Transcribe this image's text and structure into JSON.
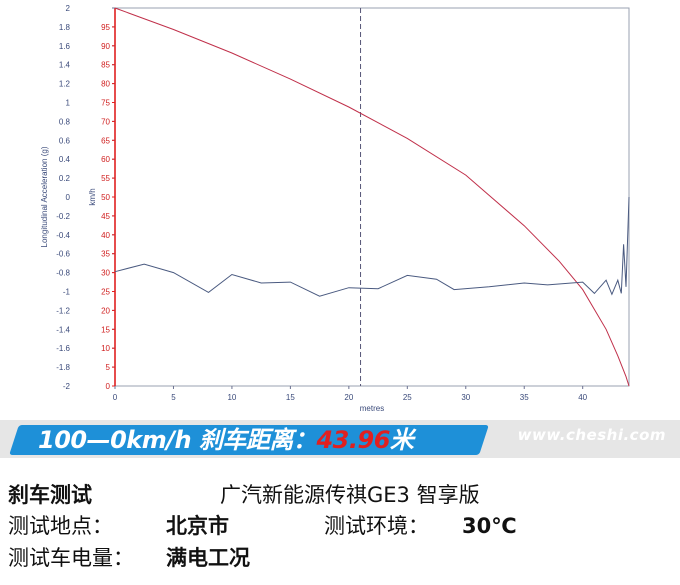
{
  "chart_data": {
    "type": "line",
    "xlabel": "metres",
    "left_axis_label": "Longitudinal Acceleration (g)",
    "right_axis_label": "km/h",
    "xlim": [
      0,
      43.96
    ],
    "x_ticks": [
      "0",
      "5",
      "10",
      "15",
      "20",
      "25",
      "30",
      "35",
      "40"
    ],
    "left_ticks": [
      "2",
      "1.8",
      "1.6",
      "1.4",
      "1.2",
      "1",
      "0.8",
      "0.6",
      "0.4",
      "0.2",
      "0",
      "-0.2",
      "-0.4",
      "-0.6",
      "-0.8",
      "-1",
      "-1.2",
      "-1.4",
      "-1.6",
      "-1.8",
      "-2"
    ],
    "right_ticks": [
      "95",
      "90",
      "85",
      "80",
      "75",
      "70",
      "65",
      "60",
      "55",
      "50",
      "45",
      "40",
      "35",
      "30",
      "25",
      "20",
      "15",
      "10",
      "5",
      "0"
    ],
    "left_ylim": [
      -2,
      2
    ],
    "right_ylim": [
      0,
      100
    ],
    "cursor_x": 21,
    "grid": false,
    "series": [
      {
        "axis": "right",
        "color": "#c0304a",
        "x": [
          0,
          5,
          10,
          15,
          20,
          25,
          30,
          35,
          38,
          40,
          42,
          43,
          43.7,
          43.96
        ],
        "y": [
          100,
          94.3,
          88.1,
          81.2,
          73.8,
          65.5,
          55.8,
          42.4,
          33,
          25.5,
          15,
          8,
          2.5,
          0
        ]
      },
      {
        "axis": "left",
        "color": "#4a5a80",
        "x": [
          0,
          2.5,
          5,
          8,
          10,
          12.5,
          15,
          17.5,
          20,
          22.5,
          25,
          27.5,
          29,
          32,
          35,
          37,
          40,
          41,
          42,
          42.5,
          43,
          43.3,
          43.5,
          43.7,
          43.96
        ],
        "y": [
          -0.79,
          -0.71,
          -0.8,
          -1.01,
          -0.82,
          -0.91,
          -0.9,
          -1.05,
          -0.96,
          -0.97,
          -0.83,
          -0.87,
          -0.98,
          -0.95,
          -0.91,
          -0.93,
          -0.9,
          -1.02,
          -0.88,
          -1.03,
          -0.88,
          -1.02,
          -0.5,
          -0.95,
          0.0
        ]
      }
    ]
  },
  "banner": {
    "prefix": "100—0km/h 刹车距离：",
    "value": "43.96",
    "suffix": "米",
    "watermark": "www.cheshi.com",
    "blue": "#1e90d8",
    "value_color": "#e02020"
  },
  "info": {
    "title": "刹车测试",
    "car": "广汽新能源传祺GE3  智享版",
    "location_label": "测试地点：",
    "location": "北京市",
    "env_label": "测试环境：",
    "env": "30℃",
    "battery_label": "测试车电量：",
    "battery": "满电工况"
  }
}
